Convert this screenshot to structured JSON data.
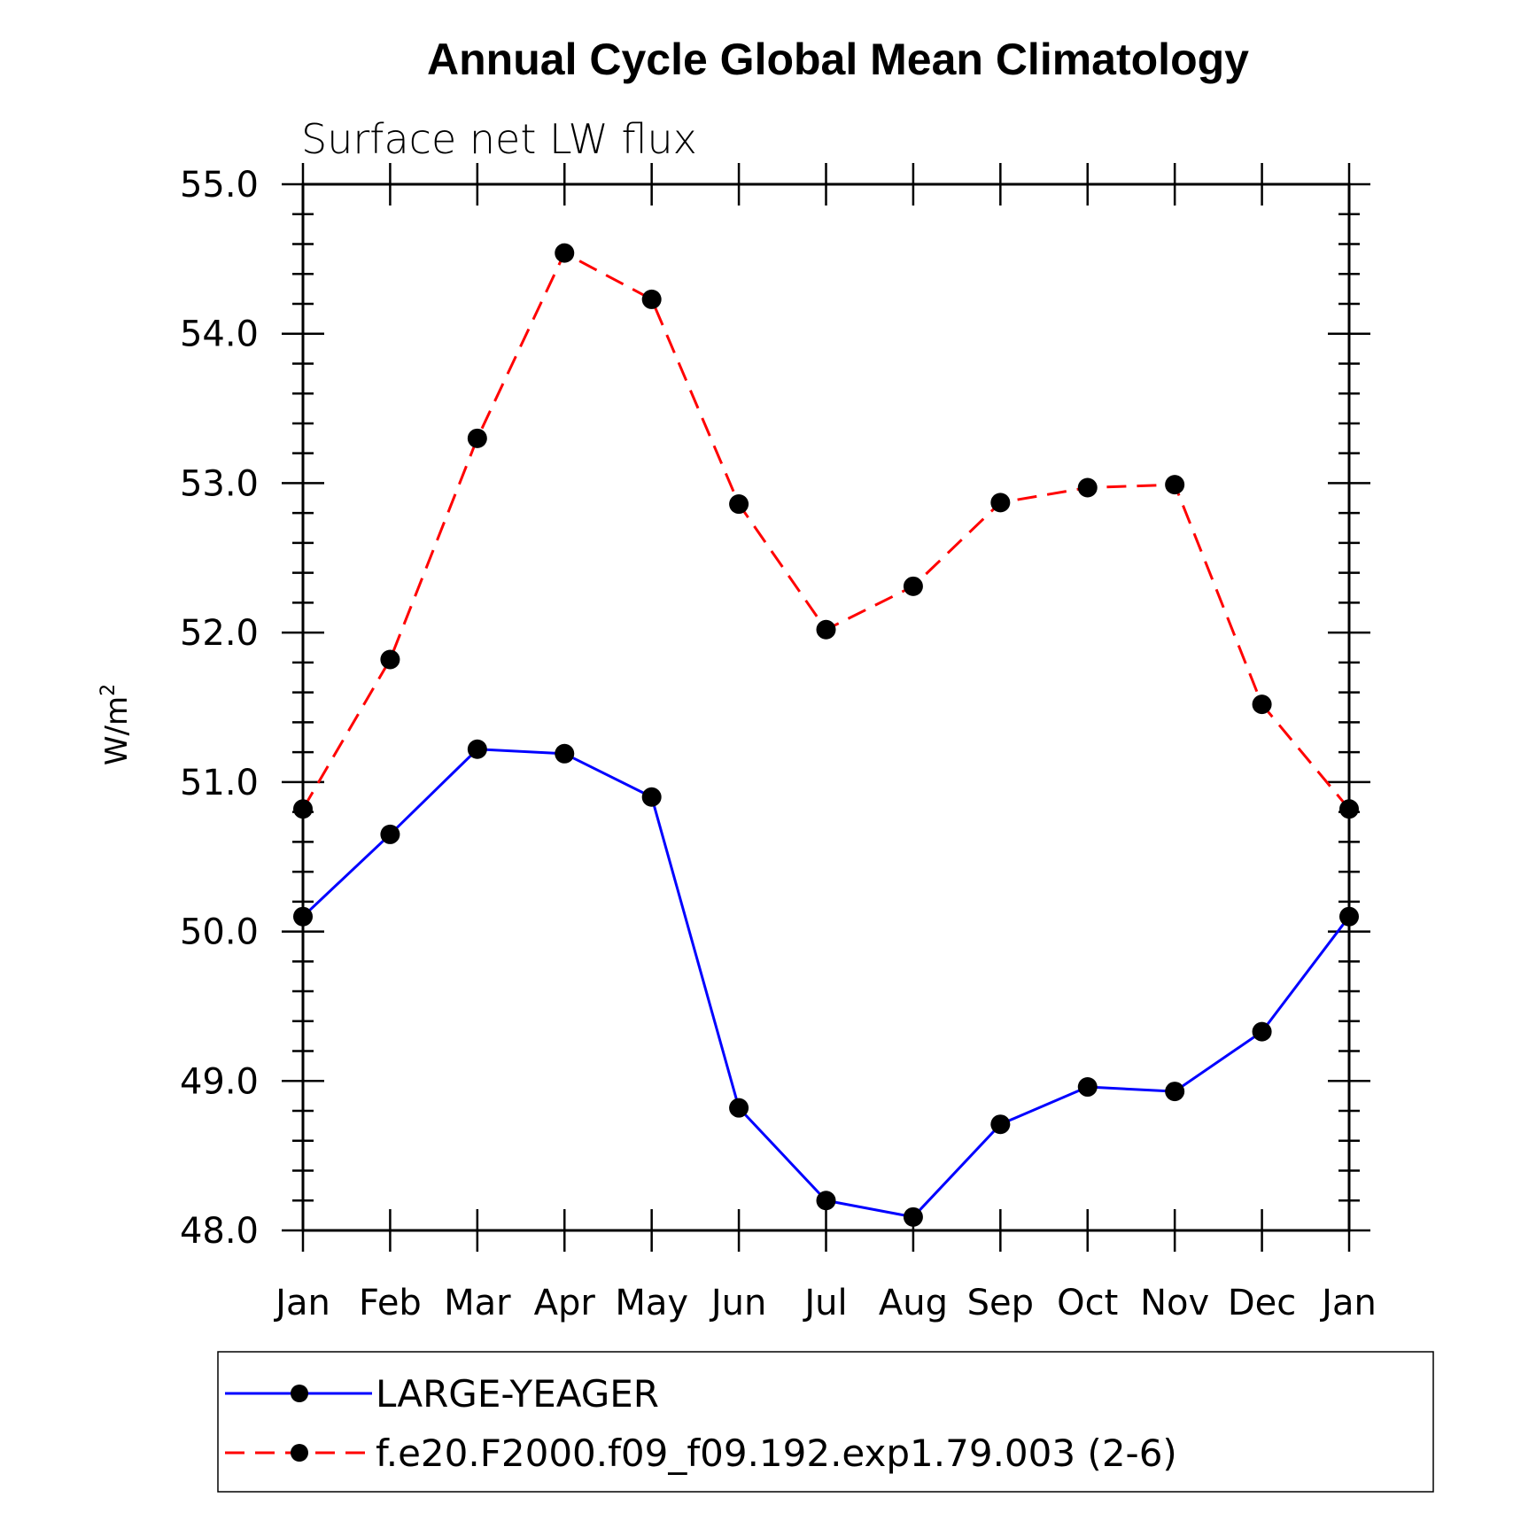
{
  "chart_data": {
    "type": "line",
    "title": "Annual Cycle Global Mean Climatology",
    "subtitle": "Surface net LW flux",
    "ylabel_main": "W/m",
    "ylabel_sup": "2",
    "xlabel": "",
    "categories": [
      "Jan",
      "Feb",
      "Mar",
      "Apr",
      "May",
      "Jun",
      "Jul",
      "Aug",
      "Sep",
      "Oct",
      "Nov",
      "Dec",
      "Jan"
    ],
    "ylim": [
      48.0,
      55.0
    ],
    "yticks": [
      "48.0",
      "49.0",
      "50.0",
      "51.0",
      "52.0",
      "53.0",
      "54.0",
      "55.0"
    ],
    "grid": false,
    "legend_position": "bottom",
    "series": [
      {
        "name": "LARGE-YEAGER",
        "color": "#0000ff",
        "dash": "solid",
        "values": [
          50.1,
          50.65,
          51.22,
          51.19,
          50.9,
          48.82,
          48.2,
          48.09,
          48.71,
          48.96,
          48.93,
          49.33,
          50.1
        ]
      },
      {
        "name": "f.e20.F2000.f09_f09.192.exp1.79.003 (2-6)",
        "color": "#ff0000",
        "dash": "dashed",
        "values": [
          50.82,
          51.82,
          53.3,
          54.54,
          54.23,
          52.86,
          52.02,
          52.31,
          52.87,
          52.97,
          52.99,
          51.52,
          50.82
        ]
      }
    ],
    "marker": {
      "shape": "circle",
      "color": "#000000"
    }
  }
}
